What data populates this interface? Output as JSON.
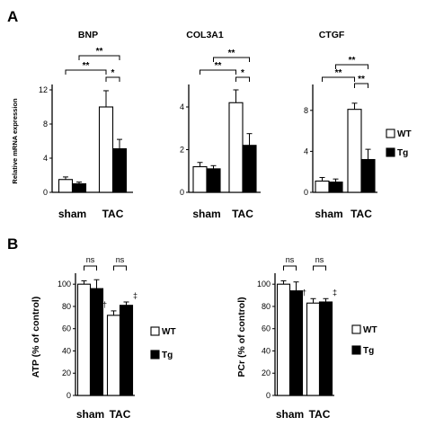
{
  "panel_labels": [
    "A",
    "B"
  ],
  "legend": {
    "wt": "WT",
    "tg": "Tg"
  },
  "colors": {
    "wt": "#ffffff",
    "tg": "#000000",
    "axis": "#000000"
  },
  "chart_data": [
    {
      "type": "bar",
      "panel": "A",
      "title": "BNP",
      "categories": [
        "sham",
        "TAC"
      ],
      "ylabel": "Relative mRNA expression",
      "ylim": [
        0,
        12
      ],
      "yticks": [
        0,
        4,
        8,
        12
      ],
      "series": [
        {
          "name": "WT",
          "values": [
            1.5,
            10.0
          ],
          "errors": [
            0.3,
            1.9
          ]
        },
        {
          "name": "Tg",
          "values": [
            1.0,
            5.1
          ],
          "errors": [
            0.2,
            1.1
          ]
        }
      ],
      "significance": [
        "**",
        "**",
        "*"
      ],
      "legend": false
    },
    {
      "type": "bar",
      "panel": "A",
      "title": "COL3A1",
      "categories": [
        "sham",
        "TAC"
      ],
      "ylabel": "",
      "ylim": [
        0,
        4.8
      ],
      "yticks": [
        0,
        2,
        4
      ],
      "series": [
        {
          "name": "WT",
          "values": [
            1.2,
            4.2
          ],
          "errors": [
            0.2,
            0.6
          ]
        },
        {
          "name": "Tg",
          "values": [
            1.1,
            2.2
          ],
          "errors": [
            0.15,
            0.55
          ]
        }
      ],
      "significance": [
        "**",
        "**",
        "*"
      ],
      "legend": false
    },
    {
      "type": "bar",
      "panel": "A",
      "title": "CTGF",
      "categories": [
        "sham",
        "TAC"
      ],
      "ylabel": "",
      "ylim": [
        0,
        10
      ],
      "yticks": [
        0,
        4,
        8
      ],
      "series": [
        {
          "name": "WT",
          "values": [
            1.1,
            8.1
          ],
          "errors": [
            0.35,
            0.6
          ]
        },
        {
          "name": "Tg",
          "values": [
            1.0,
            3.2
          ],
          "errors": [
            0.3,
            1.0
          ]
        }
      ],
      "significance": [
        "**",
        "**",
        "**"
      ],
      "legend": true
    },
    {
      "type": "bar",
      "panel": "B",
      "title": "",
      "categories": [
        "sham",
        "TAC"
      ],
      "ylabel": "ATP  (% of control)",
      "ylim": [
        0,
        105
      ],
      "yticks": [
        0,
        20,
        40,
        60,
        80,
        100
      ],
      "series": [
        {
          "name": "WT",
          "values": [
            100,
            72
          ],
          "errors": [
            3,
            4
          ]
        },
        {
          "name": "Tg",
          "values": [
            96,
            81
          ],
          "errors": [
            8,
            3
          ]
        }
      ],
      "significance": [
        "ns",
        "ns"
      ],
      "marks": [
        "†",
        "‡"
      ],
      "legend": true
    },
    {
      "type": "bar",
      "panel": "B",
      "title": "",
      "categories": [
        "sham",
        "TAC"
      ],
      "ylabel": "PCr  (% of control)",
      "ylim": [
        0,
        105
      ],
      "yticks": [
        0,
        20,
        40,
        60,
        80,
        100
      ],
      "series": [
        {
          "name": "WT",
          "values": [
            100,
            83
          ],
          "errors": [
            3,
            4
          ]
        },
        {
          "name": "Tg",
          "values": [
            94,
            84
          ],
          "errors": [
            8,
            3
          ]
        }
      ],
      "significance": [
        "ns",
        "ns"
      ],
      "marks": [
        "†",
        "‡"
      ],
      "legend": true
    }
  ]
}
